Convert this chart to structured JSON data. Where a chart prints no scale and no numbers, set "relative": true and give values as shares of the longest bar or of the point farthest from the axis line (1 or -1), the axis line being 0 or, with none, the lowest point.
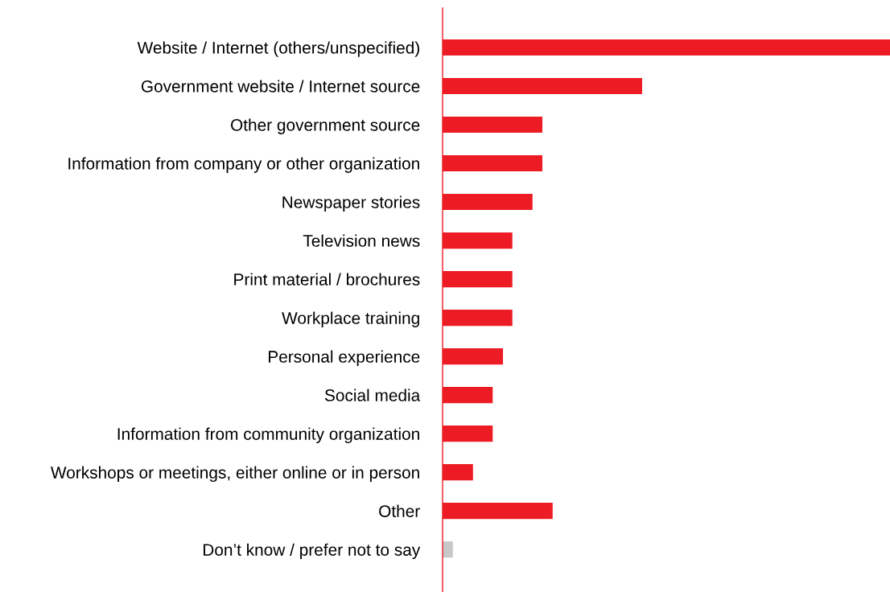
{
  "chart_data": {
    "type": "bar",
    "orientation": "horizontal",
    "relative": true,
    "categories": [
      "Website / Internet (others/unspecified)",
      "Government website / Internet source",
      "Other government source",
      "Information from company or other organization",
      "Newspaper stories",
      "Television news",
      "Print material / brochures",
      "Workplace training",
      "Personal experience",
      "Social media",
      "Information from community organization",
      "Workshops or meetings, either online or in person",
      "Other",
      "Don’t know / prefer not to say"
    ],
    "values": [
      1,
      0.446,
      0.223,
      0.223,
      0.201,
      0.156,
      0.156,
      0.156,
      0.135,
      0.112,
      0.112,
      0.068,
      0.246,
      0.023
    ],
    "colors": [
      "#ed1c24",
      "#ed1c24",
      "#ed1c24",
      "#ed1c24",
      "#ed1c24",
      "#ed1c24",
      "#ed1c24",
      "#ed1c24",
      "#ed1c24",
      "#ed1c24",
      "#ed1c24",
      "#ed1c24",
      "#ed1c24",
      "#c8c8c8"
    ],
    "grid": false,
    "legend": false
  }
}
